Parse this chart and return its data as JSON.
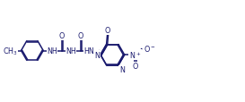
{
  "bg_color": "#ffffff",
  "bond_color": "#1a1a6e",
  "text_color": "#1a1a6e",
  "line_width": 1.1,
  "font_size": 5.8,
  "fig_width": 2.73,
  "fig_height": 1.15,
  "dpi": 100,
  "xlim": [
    0,
    10.5
  ],
  "ylim": [
    0,
    3.8
  ]
}
